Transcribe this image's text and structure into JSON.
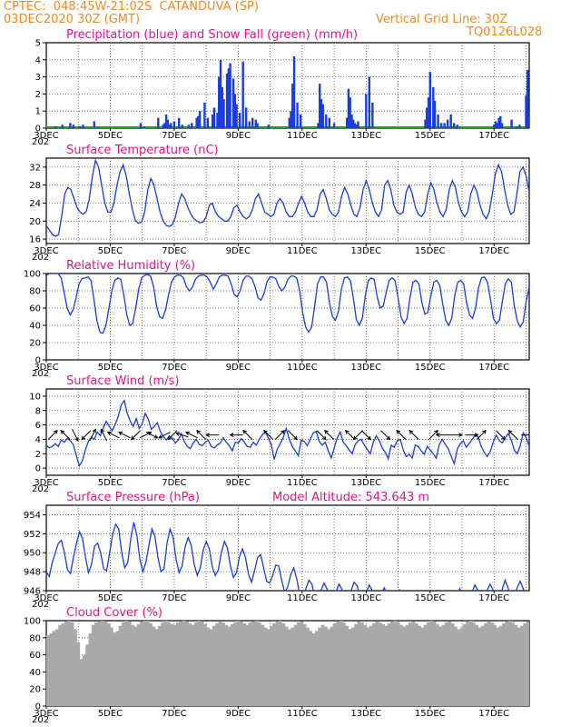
{
  "header": {
    "line1": "CPTEC:  048:45W-21:02S  CATANDUVA (SP)",
    "line2": "03DEC2020 30Z (GMT)",
    "grid_note": "Vertical Grid Line: 30Z",
    "code": "TQ0126L028"
  },
  "colors": {
    "header": "#f08a1c",
    "title": "#e0158a",
    "line": "#1a3ddb",
    "bar": "#1a3ddb",
    "snow": "#1fa01f",
    "cloud": "#a9a9a9",
    "grid": "#555555"
  },
  "x_axis": {
    "tick_labels": [
      "3DEC",
      "5DEC",
      "7DEC",
      "9DEC",
      "11DEC",
      "13DEC",
      "15DEC",
      "17DEC"
    ],
    "year_fragment": "202"
  },
  "chart_data": [
    {
      "id": "precip",
      "type": "bar",
      "title": "Precipitation (blue) and Snow Fall (green) (mm/h)",
      "ylim": [
        0,
        5
      ],
      "yticks": [
        0,
        1,
        2,
        3,
        4,
        5
      ],
      "x_days": [
        0.3,
        0.5,
        0.75,
        0.85,
        1.05,
        1.15,
        1.5,
        2.95,
        3.05,
        3.5,
        3.65,
        3.7,
        3.75,
        3.8,
        3.85,
        3.9,
        4.0,
        4.15,
        4.25,
        4.45,
        4.55,
        4.7,
        4.75,
        4.8,
        4.95,
        5.05,
        5.2,
        5.25,
        5.35,
        5.4,
        5.45,
        5.5,
        5.55,
        5.65,
        5.7,
        5.75,
        5.85,
        5.9,
        5.95,
        6.05,
        6.15,
        6.25,
        6.35,
        6.45,
        6.55,
        6.6,
        6.95,
        7.6,
        7.65,
        7.7,
        7.75,
        7.85,
        7.95,
        8.5,
        8.55,
        8.6,
        8.65,
        8.75,
        8.85,
        9.0,
        9.4,
        9.45,
        9.5,
        9.55,
        9.6,
        9.65,
        9.7,
        9.75,
        10.0,
        10.1,
        10.2,
        11.85,
        11.9,
        11.95,
        12.0,
        12.1,
        12.15,
        12.25,
        12.35,
        12.45,
        12.55,
        12.65,
        12.75,
        12.85,
        14.0,
        14.05,
        14.1,
        14.15,
        14.2,
        14.25,
        14.55,
        14.7,
        14.8,
        15.0,
        15.05,
        15.1,
        15.15,
        15.2,
        15.25,
        15.35,
        15.45,
        16.45,
        16.5
      ],
      "values": [
        0.1,
        0.2,
        0.3,
        0.2,
        0.1,
        0.2,
        0.4,
        0.3,
        0.1,
        0.6,
        0.2,
        0.3,
        0.8,
        0.5,
        0.2,
        0.3,
        0.4,
        0.6,
        0.2,
        0.2,
        0.3,
        0.6,
        0.7,
        1.0,
        1.5,
        0.6,
        0.8,
        1.2,
        0.9,
        3.0,
        4.0,
        2.4,
        1.7,
        3.2,
        3.5,
        3.8,
        2.9,
        2.0,
        1.4,
        0.9,
        3.9,
        1.2,
        0.4,
        0.6,
        0.5,
        0.3,
        0.2,
        0.6,
        1.0,
        2.6,
        4.2,
        1.5,
        0.8,
        0.3,
        2.6,
        1.7,
        1.4,
        0.8,
        0.6,
        0.3,
        0.6,
        2.3,
        1.8,
        0.8,
        0.5,
        0.3,
        0.2,
        0.4,
        2.0,
        3.0,
        1.5,
        0.5,
        1.2,
        1.8,
        3.3,
        2.4,
        1.6,
        0.8,
        0.3,
        0.3,
        0.5,
        0.8,
        0.3,
        0.2,
        0.2,
        0.4,
        0.3,
        0.6,
        0.7,
        0.3,
        0.5,
        0.1,
        0.2,
        1.9,
        3.4,
        0.7,
        0.2,
        0.5,
        0.2,
        0.3,
        0.2,
        0.2,
        0.6
      ]
    },
    {
      "id": "temp",
      "type": "line",
      "title": "Surface Temperature (nC)",
      "ylim": [
        15,
        34
      ],
      "yticks": [
        16,
        20,
        24,
        28,
        32
      ],
      "values": [
        19.0,
        18.0,
        17.0,
        16.6,
        17.0,
        21.0,
        26.0,
        27.5,
        27.0,
        25.0,
        23.0,
        22.0,
        21.5,
        22.2,
        25.0,
        30.0,
        33.5,
        32.0,
        28.0,
        24.0,
        22.0,
        22.0,
        24.0,
        28.0,
        31.0,
        32.5,
        30.0,
        26.0,
        22.5,
        20.0,
        19.5,
        19.8,
        22.0,
        27.0,
        29.5,
        28.0,
        25.0,
        22.0,
        20.0,
        19.0,
        18.8,
        19.2,
        21.0,
        24.0,
        26.0,
        25.0,
        23.0,
        21.5,
        20.5,
        20.0,
        19.6,
        19.8,
        21.0,
        23.5,
        24.0,
        22.0,
        21.0,
        20.5,
        20.0,
        20.0,
        21.0,
        23.0,
        23.5,
        22.0,
        21.0,
        20.5,
        21.0,
        22.5,
        25.0,
        26.0,
        24.0,
        22.0,
        21.5,
        21.0,
        21.5,
        24.0,
        25.0,
        24.0,
        22.0,
        21.0,
        21.0,
        22.0,
        24.0,
        25.5,
        24.0,
        22.0,
        21.0,
        21.0,
        22.5,
        26.0,
        27.0,
        25.0,
        22.5,
        21.5,
        21.0,
        22.0,
        25.5,
        27.5,
        26.0,
        23.5,
        21.5,
        21.0,
        23.0,
        27.0,
        29.0,
        27.0,
        24.0,
        22.0,
        21.0,
        22.5,
        28.0,
        29.0,
        27.0,
        23.5,
        22.0,
        21.5,
        22.0,
        26.5,
        28.0,
        26.0,
        23.0,
        21.5,
        21.0,
        22.0,
        26.0,
        28.5,
        27.0,
        24.0,
        22.0,
        21.0,
        22.5,
        27.0,
        29.0,
        27.5,
        24.0,
        22.0,
        21.0,
        22.0,
        26.0,
        28.0,
        26.5,
        23.5,
        21.5,
        20.5,
        22.0,
        26.0,
        30.5,
        32.5,
        31.0,
        27.0,
        23.5,
        21.5,
        22.0,
        26.0,
        31.0,
        32.0,
        30.0,
        26.5
      ]
    },
    {
      "id": "rh",
      "type": "line",
      "title": "Relative Humidity (%)",
      "ylim": [
        0,
        100
      ],
      "yticks": [
        0,
        20,
        40,
        60,
        80,
        100
      ],
      "values": [
        98,
        100,
        100,
        100,
        100,
        95,
        78,
        60,
        52,
        58,
        72,
        88,
        94,
        95,
        96,
        92,
        70,
        45,
        32,
        31,
        40,
        60,
        80,
        92,
        95,
        93,
        75,
        52,
        40,
        42,
        60,
        82,
        95,
        98,
        99,
        97,
        85,
        62,
        50,
        48,
        58,
        75,
        90,
        96,
        98,
        98,
        95,
        85,
        80,
        84,
        93,
        97,
        98,
        98,
        96,
        90,
        82,
        88,
        96,
        98,
        98,
        97,
        88,
        76,
        73,
        80,
        92,
        97,
        97,
        94,
        85,
        72,
        69,
        76,
        90,
        96,
        96,
        94,
        85,
        80,
        84,
        93,
        97,
        97,
        95,
        80,
        55,
        38,
        32,
        38,
        62,
        88,
        96,
        96,
        90,
        66,
        50,
        46,
        56,
        82,
        95,
        96,
        92,
        72,
        47,
        40,
        48,
        74,
        92,
        95,
        93,
        73,
        60,
        62,
        78,
        92,
        95,
        92,
        72,
        50,
        42,
        48,
        72,
        90,
        92,
        88,
        66,
        53,
        55,
        74,
        90,
        92,
        86,
        64,
        46,
        40,
        48,
        74,
        90,
        92,
        88,
        66,
        52,
        48,
        60,
        84,
        95,
        96,
        90,
        70,
        48,
        42,
        46,
        68,
        88,
        94,
        90,
        62,
        45,
        38,
        44,
        68,
        85
      ]
    },
    {
      "id": "wind",
      "type": "line",
      "title": "Surface Wind (m/s)",
      "ylim": [
        -1,
        11
      ],
      "yticks": [
        0,
        2,
        4,
        6,
        8,
        10
      ],
      "values": [
        3.2,
        2.8,
        3.0,
        3.4,
        3.0,
        3.9,
        3.6,
        4.1,
        3.8,
        3.3,
        1.8,
        0.3,
        1.0,
        2.5,
        3.7,
        4.3,
        4.0,
        5.0,
        4.5,
        5.6,
        6.5,
        5.8,
        5.2,
        6.1,
        7.2,
        8.8,
        9.4,
        7.6,
        6.5,
        5.8,
        6.9,
        5.5,
        6.2,
        7.6,
        6.8,
        5.4,
        5.8,
        6.3,
        5.1,
        4.4,
        3.9,
        4.5,
        4.2,
        3.5,
        3.9,
        4.8,
        3.7,
        3.0,
        2.7,
        3.5,
        4.0,
        3.3,
        3.1,
        3.6,
        3.9,
        3.0,
        2.8,
        3.2,
        3.5,
        4.2,
        3.6,
        3.1,
        2.4,
        3.6,
        3.5,
        4.1,
        3.6,
        3.0,
        2.9,
        3.6,
        3.2,
        4.0,
        4.6,
        5.1,
        4.2,
        3.3,
        1.2,
        2.6,
        3.4,
        4.2,
        5.5,
        4.0,
        3.0,
        2.4,
        1.7,
        3.9,
        3.7,
        3.1,
        4.0,
        4.9,
        5.1,
        3.7,
        3.2,
        3.6,
        2.4,
        1.4,
        2.8,
        4.2,
        5.0,
        3.6,
        3.1,
        2.5,
        2.0,
        3.3,
        3.8,
        4.0,
        3.2,
        2.6,
        2.0,
        3.6,
        4.5,
        3.8,
        2.8,
        2.2,
        1.3,
        3.2,
        2.9,
        3.8,
        4.0,
        2.5,
        1.6,
        1.9,
        1.4,
        3.2,
        3.0,
        2.4,
        1.9,
        3.0,
        2.5,
        2.0,
        1.4,
        3.3,
        4.0,
        3.3,
        2.7,
        1.6,
        0.6,
        2.6,
        3.4,
        3.8,
        2.9,
        3.4,
        4.0,
        4.6,
        4.3,
        3.0,
        2.2,
        1.6,
        2.3,
        3.6,
        4.6,
        3.8,
        3.5,
        4.2,
        4.8,
        3.9,
        2.5,
        2.0,
        3.1,
        4.9,
        4.2,
        3.0
      ]
    },
    {
      "id": "pres",
      "type": "line",
      "title": "Surface Pressure (hPa)",
      "extra_label": "Model Altitude: 543.643 m",
      "ylim": [
        946,
        955
      ],
      "yticks": [
        946,
        948,
        950,
        952,
        954
      ],
      "values": [
        948.0,
        947.5,
        949.0,
        950.0,
        951.0,
        951.3,
        950.0,
        948.2,
        947.8,
        949.5,
        951.0,
        952.2,
        951.5,
        949.5,
        947.9,
        948.8,
        950.7,
        951.0,
        950.0,
        948.3,
        948.1,
        950.0,
        952.0,
        953.0,
        952.5,
        950.0,
        948.4,
        949.0,
        951.5,
        953.2,
        951.8,
        949.3,
        948.0,
        949.0,
        950.8,
        952.5,
        951.7,
        949.5,
        948.0,
        948.3,
        951.0,
        952.5,
        951.6,
        949.3,
        947.9,
        948.6,
        950.6,
        951.6,
        950.8,
        948.8,
        947.6,
        948.4,
        950.3,
        951.2,
        950.4,
        948.5,
        947.6,
        948.2,
        950.0,
        951.2,
        950.5,
        948.6,
        947.4,
        947.9,
        949.6,
        950.4,
        949.5,
        947.7,
        946.9,
        948.1,
        949.5,
        949.8,
        948.4,
        947.0,
        946.8,
        947.6,
        948.7,
        948.6,
        947.1,
        945.8,
        946.4,
        947.7,
        948.4,
        947.2,
        945.5,
        945.2,
        946.2,
        947.1,
        946.7,
        945.3,
        945.0,
        946.0,
        946.8,
        946.2,
        945.0,
        944.9,
        945.9,
        946.7,
        946.1,
        945.0,
        944.9,
        946.0,
        946.9,
        946.5,
        945.2,
        945.0,
        945.8,
        946.6,
        946.0,
        944.8,
        944.8,
        945.7,
        946.3,
        945.6,
        944.5,
        944.6,
        945.6,
        946.1,
        945.5,
        944.6,
        944.7,
        945.6,
        946.0,
        945.4,
        944.5,
        944.6,
        945.4,
        945.8,
        945.2,
        944.4,
        944.5,
        945.4,
        945.9,
        945.3,
        944.5,
        944.6,
        945.6,
        946.2,
        945.5,
        944.6,
        944.8,
        945.8,
        946.6,
        946.0,
        944.9,
        945.0,
        946.0,
        946.7,
        946.1,
        945.1,
        945.1,
        946.1,
        947.1,
        946.3,
        945.2,
        945.3,
        946.3,
        947.0,
        946.2,
        945.3,
        945.2
      ]
    },
    {
      "id": "cloud",
      "type": "bar",
      "title": "Cloud Cover (%)",
      "ylim": [
        0,
        100
      ],
      "yticks": [
        0,
        20,
        40,
        60,
        80,
        100
      ],
      "values": [
        83,
        85,
        88,
        90,
        95,
        97,
        99,
        100,
        98,
        90,
        75,
        55,
        60,
        72,
        85,
        95,
        98,
        99,
        100,
        99,
        97,
        92,
        86,
        88,
        94,
        98,
        100,
        99,
        95,
        93,
        96,
        99,
        100,
        100,
        97,
        93,
        90,
        94,
        98,
        100,
        98,
        96,
        95,
        98,
        99,
        100,
        99,
        97,
        95,
        98,
        100,
        99,
        96,
        92,
        90,
        94,
        97,
        99,
        98,
        95,
        93,
        96,
        98,
        100,
        99,
        97,
        95,
        98,
        99,
        100,
        98,
        95,
        92,
        90,
        94,
        97,
        99,
        100,
        97,
        93,
        90,
        92,
        95,
        98,
        99,
        96,
        92,
        88,
        85,
        88,
        92,
        95,
        93,
        90,
        93,
        97,
        99,
        100,
        98,
        94,
        90,
        92,
        96,
        99,
        98,
        95,
        92,
        94,
        97,
        99,
        98,
        96,
        94,
        97,
        99,
        100,
        98,
        95,
        93,
        95,
        98,
        99,
        97,
        94,
        92,
        95,
        98,
        100,
        99,
        96,
        93,
        95,
        98,
        99,
        97,
        93,
        90,
        92,
        96,
        99,
        100,
        98,
        95,
        92,
        94,
        97,
        99,
        98,
        95,
        92,
        94,
        97,
        99,
        100,
        98,
        95,
        92,
        94,
        97,
        99
      ]
    }
  ],
  "wind_arrows": {
    "x_days": [
      0.2,
      0.6,
      0.9,
      1.25,
      1.45,
      1.8,
      2.1,
      2.45,
      2.8,
      3.1,
      3.3,
      3.7,
      3.95,
      4.25,
      4.55,
      4.85,
      5.2,
      5.95,
      6.3,
      6.95,
      7.3,
      7.7,
      8.6,
      8.85,
      9.5,
      9.75,
      10.0,
      10.6,
      11.1,
      11.5,
      12.1,
      12.4,
      12.8,
      13.3,
      13.6,
      14.2,
      14.6,
      15.05,
      15.5,
      15.85,
      16.25,
      16.9
    ],
    "u": [
      1,
      -1,
      1,
      -1,
      1,
      -1,
      -2,
      -2,
      -1,
      2,
      2,
      -2,
      -1,
      -3,
      -2,
      -1,
      -1,
      -1,
      -1,
      -1,
      1,
      1,
      1,
      -1,
      -1,
      -1,
      1,
      1,
      -1,
      -1,
      1,
      -1,
      1,
      1,
      1,
      1,
      -1,
      1,
      -1,
      1,
      -1,
      1
    ],
    "v": [
      1,
      1,
      -2,
      -1,
      2,
      2,
      1,
      1,
      -1,
      1,
      -1,
      -1,
      -1,
      1,
      1,
      1,
      0,
      0,
      1,
      1,
      1,
      -1,
      -1,
      1,
      1,
      -1,
      -1,
      -1,
      1,
      1,
      1,
      0,
      0,
      0,
      1,
      -1,
      1,
      0,
      0,
      0,
      -1,
      -1
    ]
  }
}
